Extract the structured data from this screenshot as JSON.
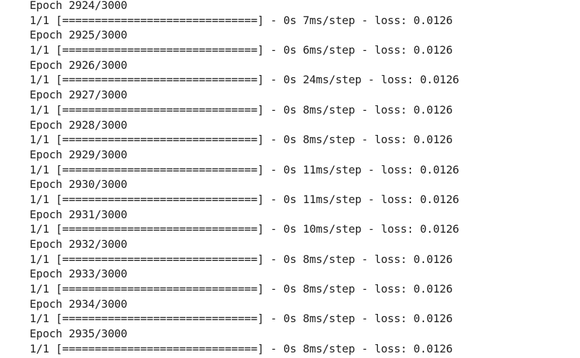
{
  "output": {
    "lines": [
      "Epoch 2924/3000",
      "1/1 [==============================] - 0s 7ms/step - loss: 0.0126",
      "Epoch 2925/3000",
      "1/1 [==============================] - 0s 6ms/step - loss: 0.0126",
      "Epoch 2926/3000",
      "1/1 [==============================] - 0s 24ms/step - loss: 0.0126",
      "Epoch 2927/3000",
      "1/1 [==============================] - 0s 8ms/step - loss: 0.0126",
      "Epoch 2928/3000",
      "1/1 [==============================] - 0s 8ms/step - loss: 0.0126",
      "Epoch 2929/3000",
      "1/1 [==============================] - 0s 11ms/step - loss: 0.0126",
      "Epoch 2930/3000",
      "1/1 [==============================] - 0s 11ms/step - loss: 0.0126",
      "Epoch 2931/3000",
      "1/1 [==============================] - 0s 10ms/step - loss: 0.0126",
      "Epoch 2932/3000",
      "1/1 [==============================] - 0s 8ms/step - loss: 0.0126",
      "Epoch 2933/3000",
      "1/1 [==============================] - 0s 8ms/step - loss: 0.0126",
      "Epoch 2934/3000",
      "1/1 [==============================] - 0s 8ms/step - loss: 0.0126",
      "Epoch 2935/3000",
      "1/1 [==============================] - 0s 8ms/step - loss: 0.0126"
    ]
  }
}
